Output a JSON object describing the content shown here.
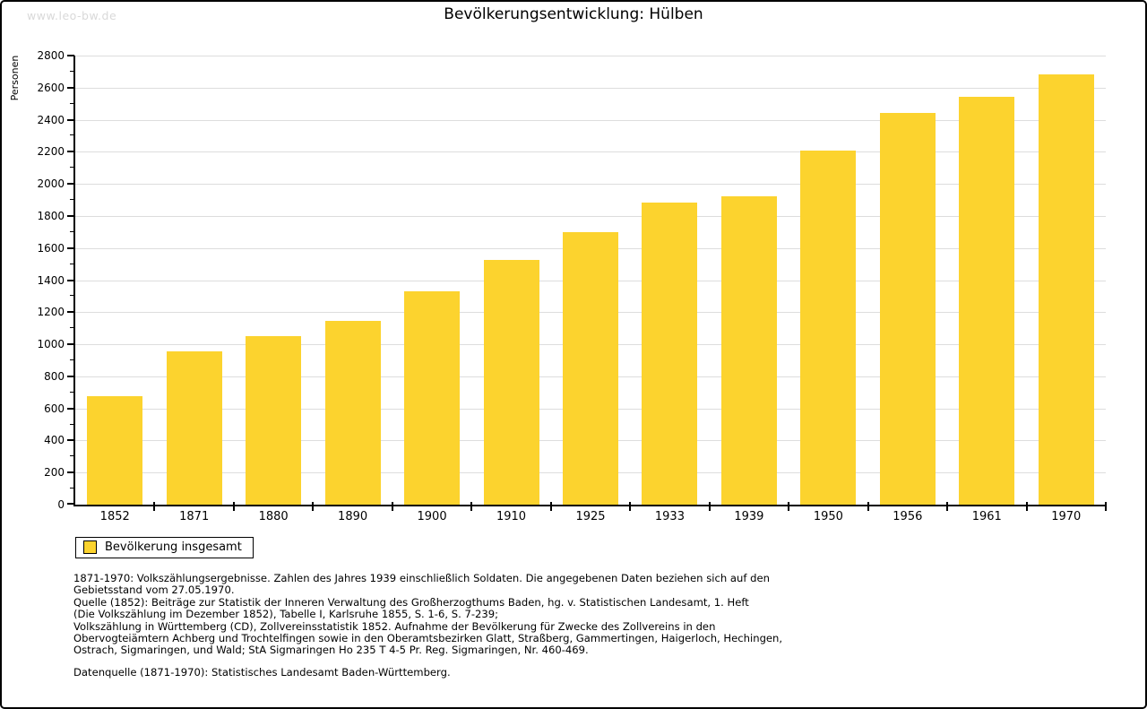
{
  "watermark": "www.leo-bw.de",
  "chart_data": {
    "type": "bar",
    "title": "Bevölkerungsentwicklung: Hülben",
    "ylabel": "Personen",
    "xlabel": "",
    "categories": [
      "1852",
      "1871",
      "1880",
      "1890",
      "1900",
      "1910",
      "1925",
      "1933",
      "1939",
      "1950",
      "1956",
      "1961",
      "1970"
    ],
    "values": [
      675,
      955,
      1050,
      1145,
      1330,
      1525,
      1700,
      1885,
      1925,
      2205,
      2440,
      2545,
      2680
    ],
    "ylim": [
      0,
      2800
    ],
    "ytick_step": 200,
    "ytick_minor_step": 100,
    "grid": true,
    "bar_color": "#FCD32E",
    "grid_color": "#dddddd",
    "legend_position": "bottom-left"
  },
  "legend": {
    "label": "Bevölkerung insgesamt"
  },
  "footer": {
    "lines": [
      "1871-1970: Volkszählungsergebnisse. Zahlen des Jahres 1939 einschließlich Soldaten. Die angegebenen Daten beziehen sich auf den",
      "Gebietsstand vom 27.05.1970.",
      "Quelle (1852): Beiträge zur Statistik der Inneren Verwaltung des Großherzogthums Baden, hg. v. Statistischen Landesamt, 1. Heft",
      "(Die Volkszählung im Dezember 1852), Tabelle I, Karlsruhe 1855, S. 1-6, S. 7-239;",
      "Volkszählung in Württemberg (CD), Zollvereinsstatistik 1852. Aufnahme der Bevölkerung für Zwecke des Zollvereins in den",
      "Obervogteiämtern Achberg und Trochtelfingen sowie in den Oberamtsbezirken Glatt, Straßberg, Gammertingen, Haigerloch, Hechingen,",
      "Ostrach, Sigmaringen, und Wald; StA Sigmaringen Ho 235 T 4-5 Pr. Reg. Sigmaringen, Nr. 460-469."
    ],
    "datasource": "Datenquelle (1871-1970): Statistisches Landesamt Baden-Württemberg."
  }
}
